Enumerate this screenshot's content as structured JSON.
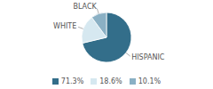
{
  "chart_data": {
    "type": "pie",
    "categories": [
      "HISPANIC",
      "WHITE",
      "BLACK"
    ],
    "values": [
      71.3,
      18.6,
      10.1
    ],
    "value_labels": [
      "71.3%",
      "18.6%",
      "10.1%"
    ],
    "colors": [
      "#336e8a",
      "#d6e8f0",
      "#8ab0c4"
    ]
  }
}
